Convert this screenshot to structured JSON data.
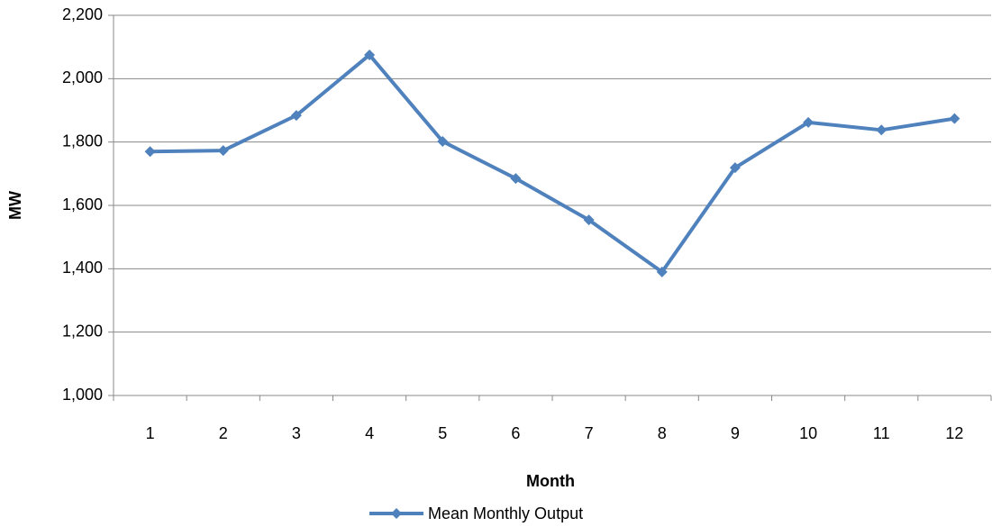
{
  "chart_data": {
    "type": "line",
    "x_label": "Month",
    "y_label": "MW",
    "categories": [
      "1",
      "2",
      "3",
      "4",
      "5",
      "6",
      "7",
      "8",
      "9",
      "10",
      "11",
      "12"
    ],
    "series": [
      {
        "name": "Mean Monthly Output",
        "color": "#4f81bd",
        "values": [
          1770,
          1773,
          1884,
          2075,
          1802,
          1685,
          1554,
          1390,
          1719,
          1862,
          1838,
          1874
        ]
      }
    ],
    "ylim": [
      1000,
      2200
    ],
    "yticks": [
      {
        "value": 1000,
        "label": "1,000"
      },
      {
        "value": 1200,
        "label": "1,200"
      },
      {
        "value": 1400,
        "label": "1,400"
      },
      {
        "value": 1600,
        "label": "1,600"
      },
      {
        "value": 1800,
        "label": "1,800"
      },
      {
        "value": 2000,
        "label": "2,000"
      },
      {
        "value": 2200,
        "label": "2,200"
      }
    ],
    "grid": true
  }
}
